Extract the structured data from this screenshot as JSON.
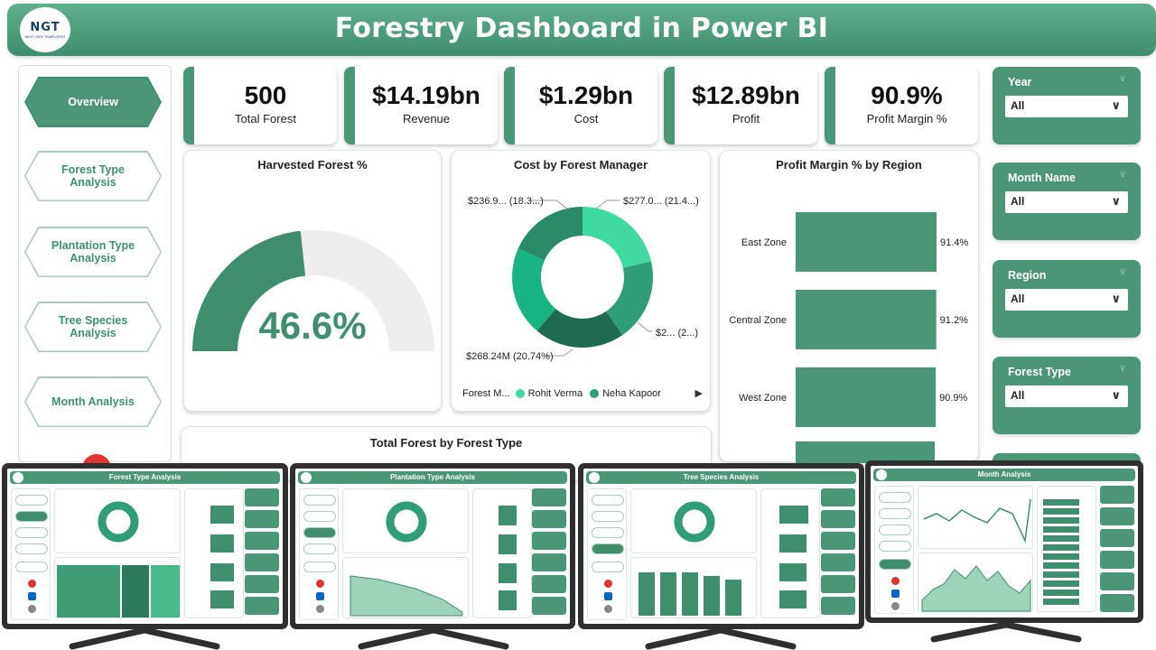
{
  "header": {
    "title": "Forestry Dashboard in Power BI",
    "logo_text": "NGT",
    "logo_sub": "NEXT GEN TEMPLATES"
  },
  "nav": [
    {
      "label": "Overview",
      "active": true
    },
    {
      "label": "Forest Type Analysis",
      "active": false
    },
    {
      "label": "Plantation Type Analysis",
      "active": false
    },
    {
      "label": "Tree Species Analysis",
      "active": false
    },
    {
      "label": "Month Analysis",
      "active": false
    }
  ],
  "kpis": [
    {
      "value": "500",
      "label": "Total Forest"
    },
    {
      "value": "$14.19bn",
      "label": "Revenue"
    },
    {
      "value": "$1.29bn",
      "label": "Cost"
    },
    {
      "value": "$12.89bn",
      "label": "Profit"
    },
    {
      "value": "90.9%",
      "label": "Profit Margin %"
    }
  ],
  "gauge": {
    "title": "Harvested Forest %",
    "value_text": "46.6%",
    "value": 46.6,
    "max": 100,
    "fill": "#3f8f6f",
    "track": "#efeeec"
  },
  "donut": {
    "title": "Cost by Forest Manager",
    "labels": [
      "$277.0... (21.4...)",
      "$2... (2...)",
      "$268.24M (20.74%)",
      "$236.9... (18.3...)"
    ],
    "legend_title": "Forest M...",
    "legend": [
      {
        "name": "Rohit Verma",
        "color": "#40d9a0"
      },
      {
        "name": "Neha Kapoor",
        "color": "#2f9e78"
      }
    ],
    "slices": [
      {
        "value": 21.4,
        "color": "#40d9a0"
      },
      {
        "value": 19.0,
        "color": "#2f9e78"
      },
      {
        "value": 20.74,
        "color": "#1f6a52"
      },
      {
        "value": 20.5,
        "color": "#17b382"
      },
      {
        "value": 18.3,
        "color": "#2b8a68"
      }
    ]
  },
  "chart_data": {
    "type": "bar",
    "title": "Profit Margin % by Region",
    "categories": [
      "East Zone",
      "Central Zone",
      "West Zone"
    ],
    "values": [
      91.4,
      91.2,
      90.9
    ],
    "value_labels": [
      "91.4%",
      "91.2%",
      "90.9%"
    ],
    "color": "#4a9677"
  },
  "bottom_panel": {
    "title": "Total Forest by Forest Type"
  },
  "slicers": [
    {
      "label": "Year",
      "value": "All"
    },
    {
      "label": "Month Name",
      "value": "All"
    },
    {
      "label": "Region",
      "value": "All"
    },
    {
      "label": "Forest Type",
      "value": "All"
    }
  ],
  "monitors": [
    {
      "title": "Forest Type Analysis"
    },
    {
      "title": "Plantation Type Analysis"
    },
    {
      "title": "Tree Species Analysis"
    },
    {
      "title": "Month Analysis"
    }
  ],
  "colors": {
    "accent": "#4a9677",
    "accent_dark": "#3f8f6f"
  }
}
